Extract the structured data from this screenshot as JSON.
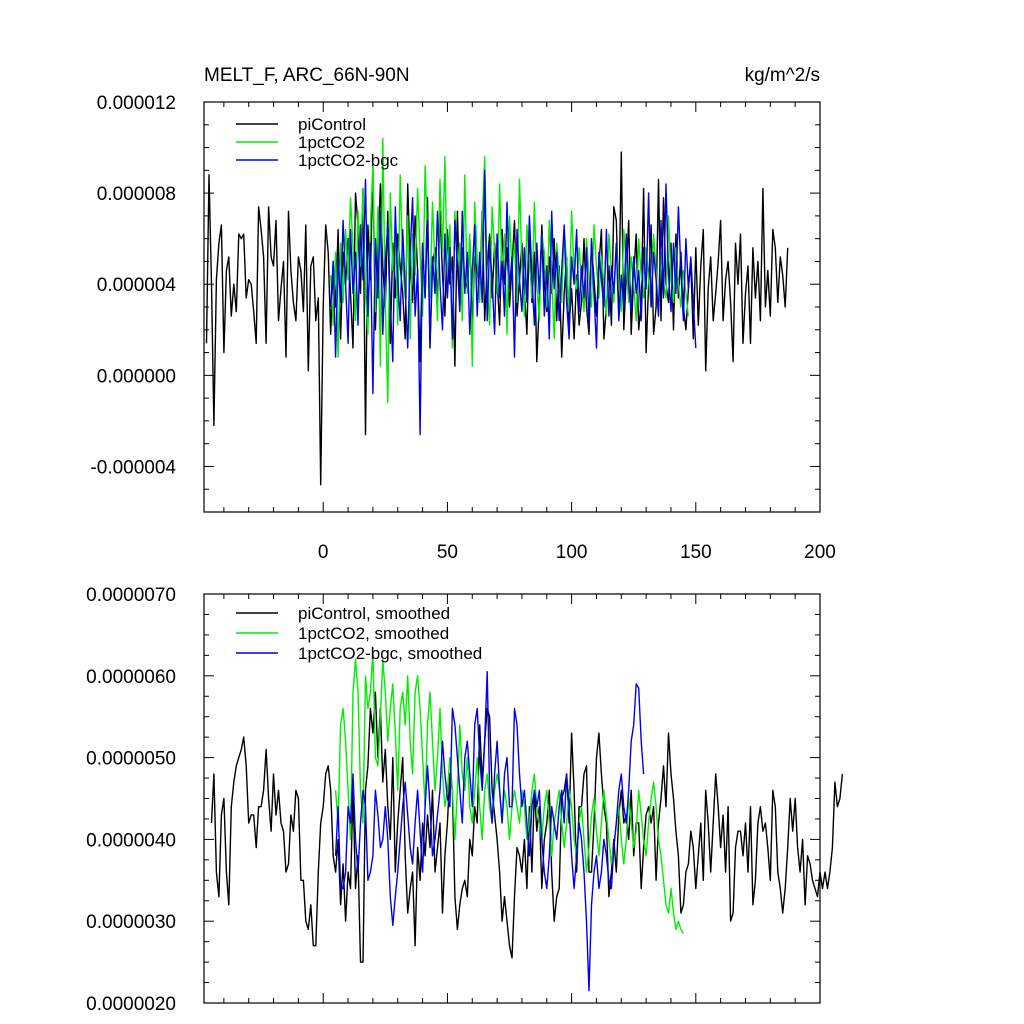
{
  "chart_data": [
    {
      "type": "line",
      "title": "MELT_F, ARC_66N-90N",
      "units": "kg/m^2/s",
      "xlim": [
        -48,
        200
      ],
      "ylim": [
        -6e-06,
        1.2e-05
      ],
      "xticks": [
        0,
        50,
        100,
        150,
        200
      ],
      "yticks": [
        -4e-06,
        0.0,
        4e-06,
        8e-06,
        1.2e-05
      ],
      "ytick_labels": [
        "-0.000004",
        "0.000000",
        "0.000004",
        "0.000008",
        "0.000012"
      ],
      "legend_position": "top-left",
      "series": [
        {
          "name": "piControl",
          "color": "#000000",
          "x_start": -47,
          "values": [
            1.4,
            8.8,
            4.0,
            -2.2,
            4.2,
            5.8,
            6.6,
            1.0,
            4.6,
            5.2,
            2.6,
            4.0,
            2.8,
            6.2,
            6.0,
            6.2,
            3.4,
            4.2,
            4.0,
            2.8,
            1.4,
            7.4,
            6.4,
            5.2,
            1.4,
            7.4,
            5.2,
            4.8,
            6.8,
            2.4,
            3.8,
            5.0,
            0.8,
            7.2,
            4.6,
            3.2,
            2.4,
            5.2,
            4.6,
            2.8,
            6.6,
            0.2,
            4.8,
            5.2,
            2.4,
            3.4,
            -4.8,
            3.0,
            6.6,
            5.4,
            1.8,
            5.0,
            3.0,
            6.4,
            1.6,
            5.4,
            4.0,
            6.0,
            3.6,
            1.2,
            8.0,
            6.6,
            3.6,
            8.2,
            -2.6,
            6.6,
            4.2,
            9.2,
            2.0,
            5.4,
            8.4,
            4.8,
            3.0,
            7.2,
            1.4,
            5.8,
            3.4,
            6.2,
            4.8,
            3.6,
            1.6,
            8.4,
            4.8,
            3.2,
            7.0,
            4.6,
            0.6,
            5.8,
            3.4,
            7.8,
            1.2,
            4.8,
            5.6,
            3.2,
            7.2,
            4.4,
            2.6,
            6.4,
            4.0,
            5.2,
            0.4,
            7.2,
            3.0,
            5.6,
            4.2,
            3.8,
            6.0,
            2.2,
            5.2,
            4.6,
            3.6,
            7.2,
            2.4,
            4.8,
            6.2,
            3.4,
            5.8,
            4.2,
            2.2,
            6.4,
            4.0,
            5.6,
            3.0,
            4.8,
            6.8,
            2.6,
            4.2,
            5.8,
            3.8,
            1.8,
            6.4,
            3.2,
            5.4,
            0.6,
            3.2,
            6.6,
            4.0,
            2.8,
            5.2,
            3.6,
            6.0,
            2.4,
            4.8,
            0.8,
            3.6,
            5.2,
            2.2,
            3.8,
            1.6,
            4.4,
            2.2,
            3.2,
            6.0,
            3.0,
            1.8,
            5.8,
            4.2,
            2.6,
            4.8,
            6.4,
            1.6,
            3.0,
            4.8,
            2.2,
            7.4,
            6.8,
            3.0,
            9.8,
            2.0,
            4.4,
            6.8,
            1.8,
            4.4,
            6.2,
            2.0,
            3.2,
            8.2,
            1.0,
            4.0,
            6.6,
            1.8,
            3.0,
            8.6,
            2.4,
            7.8,
            4.0,
            3.2,
            5.8,
            2.0,
            6.2,
            3.4,
            5.4,
            3.0,
            2.0,
            3.8,
            5.0,
            1.6,
            5.6,
            2.2,
            4.8,
            6.4,
            0.2,
            3.8,
            5.2,
            2.4,
            3.6,
            5.0,
            6.8,
            2.4,
            4.2,
            5.0,
            3.2,
            0.6,
            5.8,
            4.0,
            6.2,
            1.4,
            3.6,
            4.8,
            1.4,
            5.6,
            3.4,
            5.0,
            2.4,
            8.2,
            3.0,
            4.6,
            2.6,
            6.4,
            5.6,
            3.2,
            5.2,
            4.4,
            3.0,
            5.6
          ]
        },
        {
          "name": "1pctCO2",
          "color": "#00ee00",
          "x_start": 3,
          "values": [
            4.4,
            2.2,
            5.4,
            0.8,
            5.8,
            3.2,
            6.4,
            4.2,
            7.8,
            5.6,
            2.4,
            7.2,
            4.8,
            8.2,
            3.6,
            1.8,
            6.6,
            9.2,
            2.8,
            7.4,
            0.4,
            10.4,
            3.2,
            -1.2,
            8.0,
            4.6,
            6.2,
            2.2,
            8.8,
            5.0,
            3.4,
            7.0,
            1.6,
            6.2,
            4.4,
            8.2,
            5.4,
            2.6,
            9.2,
            6.2,
            3.4,
            7.6,
            4.8,
            2.4,
            8.6,
            5.4,
            9.6,
            3.8,
            6.6,
            1.2,
            7.2,
            4.6,
            5.8,
            2.4,
            8.8,
            3.6,
            6.2,
            0.4,
            7.6,
            5.2,
            3.2,
            6.8,
            9.6,
            4.0,
            2.2,
            7.4,
            5.4,
            3.6,
            8.4,
            4.2,
            6.2,
            1.8,
            7.0,
            4.6,
            5.8,
            3.2,
            8.6,
            4.8,
            2.6,
            6.6,
            5.0,
            3.4,
            7.6,
            4.0,
            2.4,
            6.2,
            5.4,
            3.0,
            6.8,
            4.2,
            1.6,
            5.8,
            4.4,
            3.2,
            6.4,
            5.0,
            2.8,
            7.2,
            4.6,
            3.8,
            5.6,
            4.2,
            2.8,
            6.0,
            4.4,
            3.0,
            6.6,
            4.8,
            3.4,
            5.2,
            4.0,
            2.6,
            6.2,
            4.6,
            3.2,
            5.8,
            4.0,
            2.8,
            6.4,
            4.8,
            3.2,
            5.2,
            4.0,
            2.4,
            6.0,
            4.4,
            3.4,
            5.6,
            4.2,
            3.0,
            6.2,
            4.6,
            2.8,
            5.4,
            4.0,
            3.4,
            7.0,
            4.2,
            3.2,
            5.6,
            4.0,
            3.0,
            4.6,
            3.6,
            2.6
          ]
        },
        {
          "name": "1pctCO2-bgc",
          "color": "#0000ee",
          "x_start": 3,
          "values": [
            3.0,
            5.0,
            0.8,
            5.2,
            3.2,
            6.8,
            4.0,
            1.4,
            6.4,
            3.6,
            5.4,
            2.2,
            6.6,
            4.2,
            8.6,
            2.6,
            5.8,
            -0.8,
            6.0,
            3.4,
            7.2,
            1.8,
            5.0,
            6.6,
            3.2,
            0.6,
            7.4,
            4.2,
            2.4,
            6.4,
            3.8,
            1.2,
            5.4,
            7.8,
            2.6,
            4.6,
            -2.6,
            5.8,
            3.4,
            6.8,
            1.4,
            5.2,
            3.6,
            7.2,
            4.0,
            2.0,
            6.2,
            3.4,
            5.6,
            1.6,
            6.8,
            4.8,
            2.8,
            7.2,
            3.6,
            5.4,
            1.8,
            4.6,
            6.6,
            2.6,
            5.4,
            3.2,
            9.0,
            2.4,
            5.8,
            4.2,
            1.8,
            6.2,
            3.4,
            5.0,
            2.6,
            7.6,
            3.8,
            5.2,
            0.8,
            6.4,
            4.2,
            2.8,
            5.6,
            3.2,
            7.0,
            4.4,
            2.2,
            5.8,
            3.6,
            6.2,
            2.6,
            4.8,
            1.6,
            7.2,
            3.8,
            5.4,
            2.4,
            4.6,
            6.6,
            3.2,
            1.6,
            5.2,
            4.0,
            6.4,
            2.8,
            4.8,
            3.4,
            5.6,
            2.2,
            6.0,
            3.6,
            1.2,
            5.4,
            4.2,
            3.0,
            6.4,
            2.6,
            4.8,
            3.6,
            5.8,
            2.4,
            4.4,
            3.0,
            6.2,
            4.0,
            2.8,
            5.2,
            3.6,
            4.6,
            2.4,
            5.6,
            3.8,
            8.0,
            3.0,
            5.4,
            4.2,
            2.6,
            6.8,
            3.4,
            8.4,
            4.4,
            2.8,
            5.8,
            3.6,
            7.4,
            4.6,
            2.4,
            6.0,
            3.8,
            5.2,
            3.2,
            1.2
          ]
        }
      ]
    },
    {
      "type": "line",
      "xlim": [
        -48,
        200
      ],
      "ylim": [
        2e-06,
        7e-06
      ],
      "xticks": [
        0,
        50,
        100,
        150,
        200
      ],
      "yticks": [
        2e-06,
        3e-06,
        4e-06,
        5e-06,
        6e-06,
        7e-06
      ],
      "ytick_labels": [
        "0.0000020",
        "0.0000030",
        "0.0000040",
        "0.0000050",
        "0.0000060",
        "0.0000070"
      ],
      "legend_position": "top-left",
      "series": [
        {
          "name": "piControl, smoothed",
          "color": "#000000",
          "x_start": -45,
          "values": [
            4.2,
            4.8,
            3.6,
            3.3,
            4.3,
            4.5,
            3.6,
            3.2,
            4.4,
            4.7,
            4.9,
            5.0,
            5.1,
            5.25,
            4.9,
            4.2,
            4.3,
            4.3,
            3.9,
            4.4,
            4.4,
            4.6,
            5.1,
            4.5,
            4.1,
            4.8,
            4.3,
            4.6,
            4.2,
            4.1,
            3.6,
            3.7,
            4.3,
            4.1,
            4.6,
            4.5,
            3.5,
            3.5,
            3.0,
            2.9,
            3.2,
            2.7,
            2.7,
            3.6,
            4.2,
            4.4,
            4.8,
            4.9,
            4.6,
            3.8,
            3.6,
            4.0,
            3.2,
            3.7,
            3.0,
            3.6,
            3.4,
            4.6,
            3.4,
            3.8,
            2.5,
            2.5,
            4.6,
            4.9,
            5.6,
            5.3,
            5.8,
            5.0,
            5.6,
            4.7,
            5.1,
            4.4,
            4.0,
            5.0,
            3.6,
            4.2,
            4.6,
            5.0,
            3.8,
            3.1,
            3.4,
            3.6,
            2.7,
            3.9,
            3.5,
            4.2,
            3.8,
            4.3,
            3.9,
            4.6,
            3.6,
            3.9,
            4.2,
            3.1,
            3.8,
            4.2,
            4.8,
            4.6,
            3.3,
            2.9,
            3.2,
            3.4,
            3.5,
            3.3,
            4.0,
            3.8,
            4.4,
            4.2,
            5.4,
            4.7,
            5.2,
            5.6,
            5.5,
            4.6,
            4.3,
            4.0,
            3.6,
            3.0,
            3.3,
            3.0,
            2.7,
            2.55,
            3.3,
            3.9,
            3.8,
            3.6,
            4.0,
            3.4,
            4.4,
            3.6,
            4.6,
            4.1,
            4.4,
            3.4,
            4.0,
            4.2,
            4.6,
            3.6,
            3.0,
            3.3,
            3.4,
            4.5,
            4.6,
            4.8,
            4.2,
            5.3,
            4.6,
            3.6,
            4.4,
            4.4,
            4.8,
            4.9,
            3.6,
            3.6,
            4.2,
            5.0,
            5.3,
            4.8,
            4.4,
            4.2,
            3.3,
            3.6,
            4.0,
            3.6,
            4.3,
            4.6,
            4.2,
            4.3,
            4.0,
            4.6,
            3.8,
            4.2,
            4.2,
            3.4,
            3.9,
            4.3,
            4.4,
            4.2,
            4.4,
            3.5,
            4.2,
            4.5,
            4.9,
            4.4,
            5.3,
            4.8,
            4.5,
            4.1,
            3.8,
            3.1,
            3.2,
            3.6,
            3.7,
            4.1,
            3.9,
            3.4,
            3.8,
            4.2,
            3.5,
            4.6,
            4.2,
            3.6,
            4.2,
            4.8,
            4.4,
            3.9,
            4.3,
            3.6,
            4.4,
            3.0,
            3.1,
            3.9,
            4.1,
            4.1,
            3.8,
            4.2,
            3.6,
            4.4,
            3.2,
            3.5,
            4.2,
            4.4,
            4.1,
            4.2,
            3.9,
            3.5,
            4.6,
            4.4,
            3.6,
            3.4,
            3.1,
            3.4,
            3.9,
            4.5,
            4.1,
            4.5,
            3.9,
            3.6,
            4.0,
            3.2,
            3.8,
            3.7,
            3.5,
            3.4,
            3.3,
            3.6,
            3.4,
            3.6,
            3.4,
            3.6,
            3.9,
            4.7,
            4.4,
            4.5,
            4.8
          ]
        },
        {
          "name": "1pctCO2, smoothed",
          "color": "#00ee00",
          "x_start": 5,
          "values": [
            4.6,
            4.2,
            5.4,
            5.6,
            5.2,
            4.6,
            4.0,
            5.8,
            6.2,
            5.8,
            4.6,
            4.2,
            6.0,
            5.6,
            5.8,
            6.3,
            5.0,
            4.9,
            5.5,
            6.2,
            5.8,
            5.2,
            5.6,
            5.9,
            5.3,
            4.6,
            5.6,
            5.8,
            5.4,
            6.0,
            5.2,
            4.8,
            5.8,
            6.0,
            5.6,
            5.0,
            4.4,
            5.4,
            5.8,
            5.2,
            4.6,
            5.0,
            5.6,
            4.8,
            4.4,
            4.6,
            5.0,
            4.6,
            4.0,
            4.6,
            5.4,
            4.8,
            4.6,
            5.0,
            4.4,
            4.2,
            4.6,
            5.0,
            4.4,
            4.0,
            4.6,
            4.8,
            4.4,
            4.2,
            4.6,
            4.8,
            4.6,
            4.2,
            4.6,
            4.4,
            4.0,
            4.4,
            4.6,
            4.4,
            4.2,
            4.6,
            4.4,
            4.0,
            4.2,
            4.6,
            4.8,
            4.4,
            4.2,
            4.0,
            4.4,
            4.6,
            4.2,
            3.8,
            4.2,
            4.4,
            4.6,
            4.2,
            3.9,
            4.2,
            4.6,
            4.4,
            4.0,
            3.8,
            4.2,
            4.4,
            4.0,
            3.6,
            3.9,
            4.3,
            4.5,
            4.1,
            3.8,
            4.2,
            4.6,
            4.3,
            4.0,
            3.7,
            3.9,
            4.2,
            4.4,
            4.0,
            3.7,
            4.0,
            4.5,
            4.2,
            3.9,
            4.1,
            4.6,
            4.3,
            4.0,
            3.8,
            4.2,
            4.5,
            4.7,
            4.4,
            4.0,
            3.8,
            3.5,
            3.2,
            3.1,
            3.4,
            3.1,
            2.9,
            3.0,
            2.9,
            2.85
          ]
        },
        {
          "name": "1pctCO2-bgc, smoothed",
          "color": "#0000ee",
          "x_start": 5,
          "values": [
            3.8,
            4.4,
            3.4,
            3.4,
            3.6,
            4.4,
            4.2,
            4.8,
            4.0,
            3.6,
            4.2,
            4.6,
            4.4,
            3.5,
            3.6,
            3.8,
            4.6,
            4.3,
            3.9,
            4.0,
            4.4,
            4.0,
            3.3,
            2.95,
            3.3,
            3.6,
            4.0,
            4.4,
            4.7,
            4.3,
            3.9,
            3.7,
            4.2,
            4.6,
            4.1,
            3.6,
            4.4,
            4.9,
            4.4,
            3.8,
            4.0,
            4.3,
            4.6,
            5.2,
            4.8,
            4.5,
            4.4,
            5.6,
            5.4,
            5.0,
            4.6,
            4.2,
            5.0,
            5.2,
            4.8,
            4.4,
            5.4,
            5.6,
            5.0,
            4.6,
            5.2,
            6.05,
            4.6,
            4.2,
            4.8,
            5.2,
            4.6,
            4.2,
            4.8,
            5.0,
            4.4,
            4.4,
            5.6,
            5.4,
            4.8,
            4.4,
            4.6,
            4.2,
            3.8,
            4.4,
            4.6,
            4.4,
            4.6,
            4.0,
            3.6,
            3.4,
            3.8,
            4.4,
            4.2,
            4.0,
            4.4,
            4.6,
            4.2,
            4.8,
            4.4,
            3.8,
            3.4,
            3.8,
            4.2,
            4.0,
            3.6,
            3.0,
            2.15,
            3.2,
            3.6,
            3.8,
            3.4,
            3.6,
            4.0,
            3.8,
            3.5,
            3.4,
            3.9,
            4.2,
            4.6,
            4.8,
            4.4,
            4.2,
            4.6,
            5.2,
            5.4,
            5.9,
            5.85,
            5.2,
            4.8
          ]
        }
      ]
    }
  ]
}
